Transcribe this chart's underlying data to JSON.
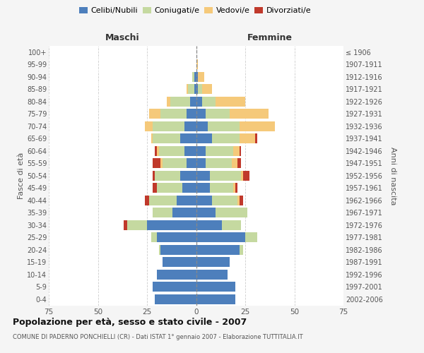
{
  "age_groups": [
    "0-4",
    "5-9",
    "10-14",
    "15-19",
    "20-24",
    "25-29",
    "30-34",
    "35-39",
    "40-44",
    "45-49",
    "50-54",
    "55-59",
    "60-64",
    "65-69",
    "70-74",
    "75-79",
    "80-84",
    "85-89",
    "90-94",
    "95-99",
    "100+"
  ],
  "birth_years": [
    "2002-2006",
    "1997-2001",
    "1992-1996",
    "1987-1991",
    "1982-1986",
    "1977-1981",
    "1972-1976",
    "1967-1971",
    "1962-1966",
    "1957-1961",
    "1952-1956",
    "1947-1951",
    "1942-1946",
    "1937-1941",
    "1932-1936",
    "1927-1931",
    "1922-1926",
    "1917-1921",
    "1912-1916",
    "1907-1911",
    "≤ 1906"
  ],
  "maschi_celibe": [
    21,
    22,
    20,
    17,
    18,
    20,
    25,
    12,
    10,
    7,
    8,
    5,
    6,
    8,
    6,
    5,
    3,
    1,
    1,
    0,
    0
  ],
  "maschi_coniugato": [
    0,
    0,
    0,
    0,
    1,
    3,
    10,
    10,
    14,
    13,
    13,
    12,
    13,
    14,
    16,
    13,
    10,
    3,
    1,
    0,
    0
  ],
  "maschi_vedovo": [
    0,
    0,
    0,
    0,
    0,
    0,
    0,
    0,
    0,
    0,
    0,
    1,
    1,
    1,
    4,
    6,
    2,
    1,
    0,
    0,
    0
  ],
  "maschi_divorziato": [
    0,
    0,
    0,
    0,
    0,
    0,
    2,
    0,
    2,
    2,
    1,
    4,
    1,
    0,
    0,
    0,
    0,
    0,
    0,
    0,
    0
  ],
  "femmine_celibe": [
    20,
    20,
    16,
    17,
    22,
    25,
    13,
    10,
    8,
    7,
    7,
    5,
    5,
    8,
    6,
    5,
    3,
    1,
    1,
    0,
    0
  ],
  "femmine_coniugata": [
    0,
    0,
    0,
    0,
    2,
    6,
    10,
    16,
    13,
    12,
    16,
    13,
    14,
    14,
    16,
    12,
    7,
    2,
    0,
    0,
    0
  ],
  "femmine_vedova": [
    0,
    0,
    0,
    0,
    0,
    0,
    0,
    0,
    1,
    1,
    1,
    3,
    3,
    8,
    18,
    20,
    15,
    5,
    3,
    1,
    0
  ],
  "femmine_divorziata": [
    0,
    0,
    0,
    0,
    0,
    0,
    0,
    0,
    2,
    1,
    3,
    2,
    1,
    1,
    0,
    0,
    0,
    0,
    0,
    0,
    0
  ],
  "color_celibe": "#4d7fbc",
  "color_coniugato": "#c5d9a0",
  "color_vedovo": "#f5c97a",
  "color_divorziato": "#c0392b",
  "legend_labels": [
    "Celibi/Nubili",
    "Coniugati/e",
    "Vedovi/e",
    "Divorziati/e"
  ],
  "label_maschi": "Maschi",
  "label_femmine": "Femmine",
  "label_fasce": "Fasce di età",
  "label_anni": "Anni di nascita",
  "title": "Popolazione per età, sesso e stato civile - 2007",
  "subtitle": "COMUNE DI PADERNO PONCHIELLI (CR) - Dati ISTAT 1° gennaio 2007 - Elaborazione TUTTITALIA.IT",
  "xlim": 75,
  "bg_color": "#f5f5f5",
  "plot_bg": "#ffffff"
}
